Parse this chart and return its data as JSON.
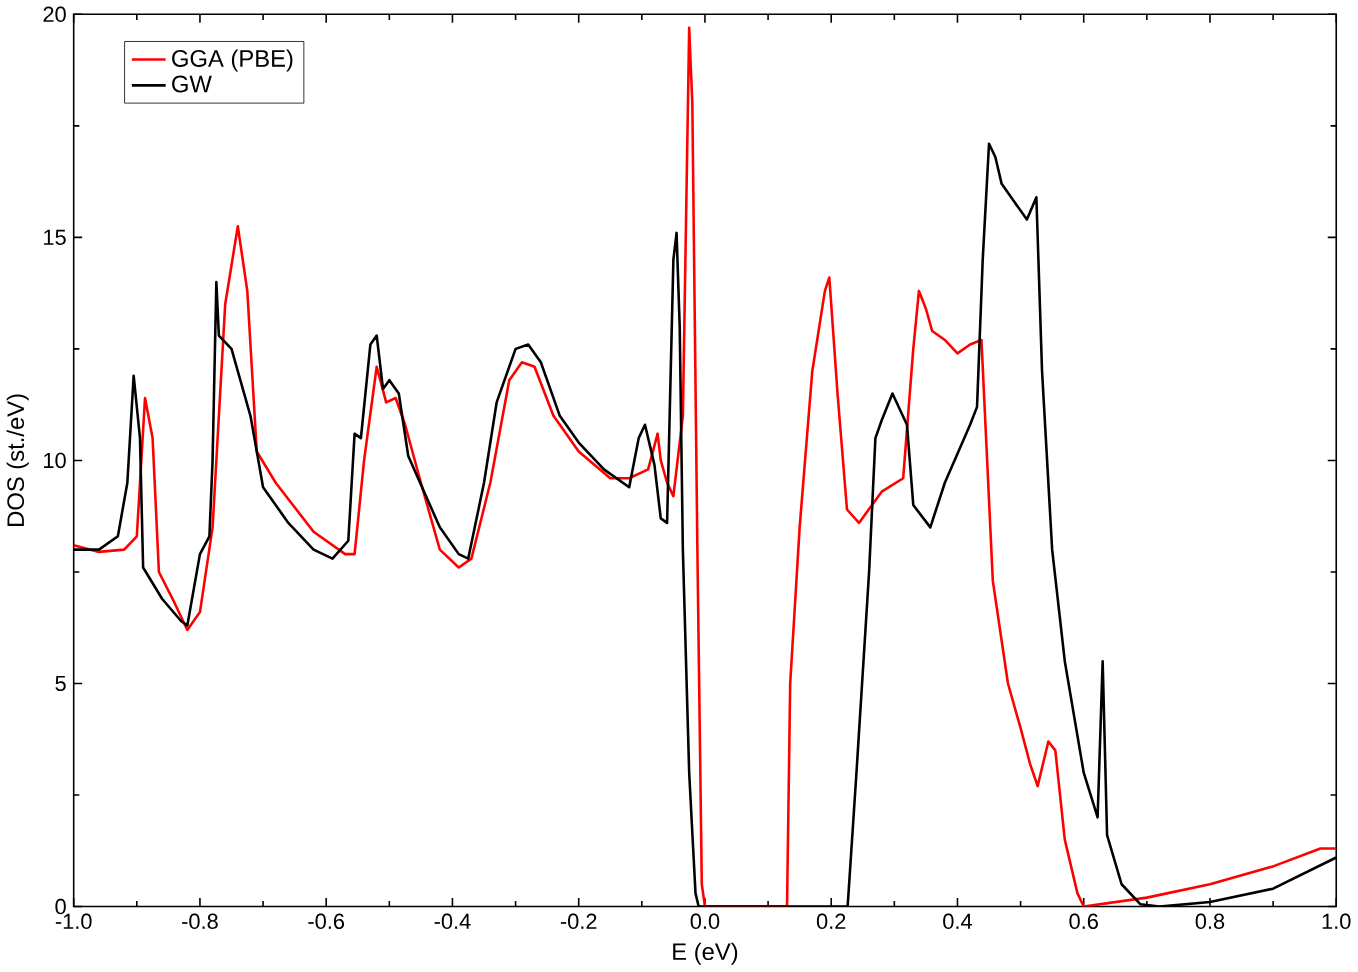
{
  "chart_data": {
    "type": "line",
    "xlabel": "E (eV)",
    "ylabel": "DOS (st./eV)",
    "xlim": [
      -1.0,
      1.0
    ],
    "ylim": [
      0,
      20
    ],
    "xticks": [
      {
        "value": -1.0,
        "label": "-1.0"
      },
      {
        "value": -0.8,
        "label": "-0.8"
      },
      {
        "value": -0.6,
        "label": "-0.6"
      },
      {
        "value": -0.4,
        "label": "-0.4"
      },
      {
        "value": -0.2,
        "label": "-0.2"
      },
      {
        "value": 0.0,
        "label": "0.0"
      },
      {
        "value": 0.2,
        "label": "0.2"
      },
      {
        "value": 0.4,
        "label": "0.4"
      },
      {
        "value": 0.6,
        "label": "0.6"
      },
      {
        "value": 0.8,
        "label": "0.8"
      },
      {
        "value": 1.0,
        "label": "1.0"
      }
    ],
    "yticks": [
      0,
      5,
      10,
      15,
      20
    ],
    "legend": "top left",
    "grid": false,
    "marker": "none",
    "line_style": "solid",
    "series": [
      {
        "name": "GGA (PBE)",
        "color": "#ff0000",
        "x": [
          -1.0,
          -0.96,
          -0.92,
          -0.9,
          -0.887,
          -0.875,
          -0.865,
          -0.84,
          -0.82,
          -0.8,
          -0.78,
          -0.76,
          -0.74,
          -0.725,
          -0.71,
          -0.68,
          -0.62,
          -0.57,
          -0.555,
          -0.54,
          -0.52,
          -0.505,
          -0.49,
          -0.475,
          -0.45,
          -0.42,
          -0.39,
          -0.37,
          -0.34,
          -0.31,
          -0.29,
          -0.27,
          -0.24,
          -0.2,
          -0.15,
          -0.12,
          -0.09,
          -0.075,
          -0.07,
          -0.06,
          -0.05,
          -0.035,
          -0.025,
          -0.02,
          -0.012,
          -0.005,
          0.0,
          0.13,
          0.135,
          0.15,
          0.17,
          0.19,
          0.197,
          0.21,
          0.225,
          0.244,
          0.28,
          0.314,
          0.33,
          0.339,
          0.35,
          0.36,
          0.38,
          0.4,
          0.42,
          0.438,
          0.456,
          0.48,
          0.5,
          0.515,
          0.527,
          0.544,
          0.555,
          0.57,
          0.59,
          0.6,
          0.7,
          0.8,
          0.9,
          0.975,
          1.0
        ],
        "values": [
          8.1,
          7.95,
          8.0,
          8.3,
          11.4,
          10.5,
          7.5,
          6.8,
          6.2,
          6.6,
          8.5,
          13.5,
          15.25,
          13.8,
          10.2,
          9.5,
          8.4,
          7.9,
          7.9,
          10.0,
          12.1,
          11.3,
          11.4,
          10.8,
          9.5,
          8.0,
          7.6,
          7.8,
          9.5,
          11.8,
          12.2,
          12.1,
          11.0,
          10.2,
          9.6,
          9.6,
          9.8,
          10.6,
          10.0,
          9.5,
          9.2,
          11.0,
          19.7,
          18.0,
          8.0,
          0.5,
          0.0,
          0.0,
          5.0,
          8.5,
          12.0,
          13.8,
          14.1,
          11.5,
          8.9,
          8.6,
          9.3,
          9.6,
          12.5,
          13.8,
          13.4,
          12.9,
          12.7,
          12.4,
          12.6,
          12.7,
          7.3,
          5.0,
          4.0,
          3.2,
          2.7,
          3.7,
          3.5,
          1.5,
          0.3,
          0.0,
          0.2,
          0.5,
          0.9,
          1.3,
          1.3
        ]
      },
      {
        "name": "GW",
        "color": "#000000",
        "x": [
          -1.0,
          -0.96,
          -0.93,
          -0.915,
          -0.905,
          -0.895,
          -0.89,
          -0.86,
          -0.83,
          -0.82,
          -0.8,
          -0.785,
          -0.78,
          -0.774,
          -0.77,
          -0.75,
          -0.72,
          -0.7,
          -0.66,
          -0.62,
          -0.59,
          -0.565,
          -0.555,
          -0.545,
          -0.53,
          -0.52,
          -0.51,
          -0.5,
          -0.485,
          -0.47,
          -0.42,
          -0.39,
          -0.375,
          -0.35,
          -0.33,
          -0.3,
          -0.28,
          -0.26,
          -0.23,
          -0.2,
          -0.16,
          -0.12,
          -0.105,
          -0.095,
          -0.08,
          -0.07,
          -0.06,
          -0.05,
          -0.045,
          -0.04,
          -0.035,
          -0.025,
          -0.015,
          -0.01,
          0.226,
          0.24,
          0.26,
          0.27,
          0.28,
          0.297,
          0.32,
          0.33,
          0.357,
          0.38,
          0.42,
          0.431,
          0.44,
          0.45,
          0.46,
          0.47,
          0.49,
          0.51,
          0.525,
          0.534,
          0.55,
          0.57,
          0.6,
          0.622,
          0.63,
          0.637,
          0.66,
          0.69,
          0.72,
          0.8,
          0.9,
          1.0
        ],
        "values": [
          8.0,
          8.0,
          8.3,
          9.5,
          11.9,
          10.5,
          7.6,
          6.9,
          6.4,
          6.3,
          7.9,
          8.3,
          10.0,
          14.0,
          12.8,
          12.5,
          11.0,
          9.4,
          8.6,
          8.0,
          7.8,
          8.2,
          10.6,
          10.5,
          12.6,
          12.8,
          11.6,
          11.8,
          11.5,
          10.1,
          8.5,
          7.9,
          7.8,
          9.5,
          11.3,
          12.5,
          12.6,
          12.2,
          11.0,
          10.4,
          9.8,
          9.4,
          10.5,
          10.8,
          9.9,
          8.7,
          8.6,
          14.5,
          15.1,
          13.0,
          8.0,
          3.0,
          0.3,
          0.0,
          0.0,
          3.0,
          7.5,
          10.5,
          10.9,
          11.5,
          10.8,
          9.0,
          8.5,
          9.5,
          10.8,
          11.2,
          14.5,
          17.1,
          16.8,
          16.2,
          15.8,
          15.4,
          15.9,
          12.0,
          8.0,
          5.5,
          3.0,
          2.0,
          5.5,
          1.6,
          0.5,
          0.05,
          0.0,
          0.1,
          0.4,
          1.1
        ]
      }
    ]
  }
}
